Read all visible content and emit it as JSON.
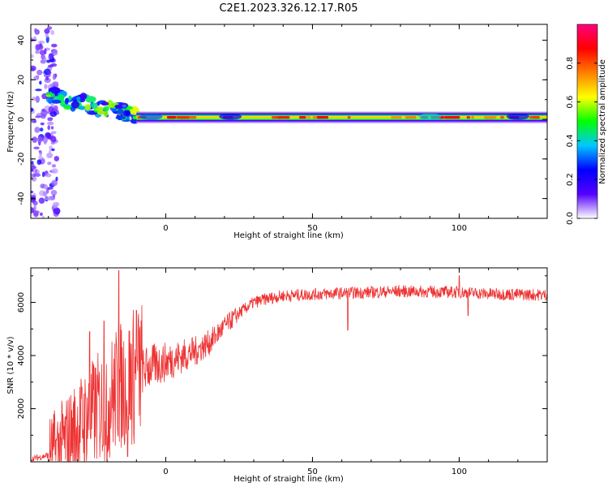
{
  "title": "C2E1.2023.326.12.17.R05",
  "chart_data": [
    {
      "type": "heatmap",
      "xlabel": "Height of straight line (km)",
      "ylabel": "Frequency (Hz)",
      "xlim": [
        -46,
        130
      ],
      "ylim": [
        -50,
        48
      ],
      "x_ticks": [
        0,
        50,
        100
      ],
      "y_ticks": [
        -40,
        -20,
        0,
        20,
        40
      ],
      "colorbar": {
        "label": "Normalized spectral amplitude",
        "range": [
          0,
          1
        ],
        "ticks": [
          0.0,
          0.2,
          0.4,
          0.6,
          0.8
        ],
        "tick_labels": [
          "0.0",
          "0.2",
          "0.4",
          "0.6",
          "0.8"
        ],
        "colors": [
          "#ffffff",
          "#5500ff",
          "#0000ff",
          "#00c8ff",
          "#00ff00",
          "#ffff00",
          "#ff7f00",
          "#ff0000",
          "#ff0080"
        ]
      },
      "features": [
        {
          "label": "noise-scatter",
          "x_range": [
            -46,
            -37
          ],
          "frequency_range": [
            -50,
            48
          ],
          "amplitude": 0.1
        },
        {
          "label": "drifting-signal",
          "x_range": [
            -40,
            -10
          ],
          "frequency_range": [
            -5,
            12
          ],
          "amplitude": 0.5
        },
        {
          "label": "carrier-line",
          "x_range": [
            -10,
            130
          ],
          "frequency": 1,
          "amplitude": 0.85
        }
      ]
    },
    {
      "type": "line",
      "xlabel": "Height of straight line (km)",
      "ylabel": "SNR (10 * v/v)",
      "xlim": [
        -46,
        130
      ],
      "ylim": [
        0,
        7300
      ],
      "x_ticks": [
        0,
        50,
        100
      ],
      "y_ticks": [
        2000,
        4000,
        6000
      ],
      "color": "#ee3333",
      "envelope": [
        {
          "x": -46,
          "y": 100
        },
        {
          "x": -40,
          "y": 250
        },
        {
          "x": -35,
          "y": 700
        },
        {
          "x": -30,
          "y": 1300
        },
        {
          "x": -25,
          "y": 1800
        },
        {
          "x": -20,
          "y": 2300
        },
        {
          "x": -15,
          "y": 2900
        },
        {
          "x": -10,
          "y": 3300
        },
        {
          "x": -5,
          "y": 3600
        },
        {
          "x": 0,
          "y": 3750
        },
        {
          "x": 5,
          "y": 3950
        },
        {
          "x": 10,
          "y": 4150
        },
        {
          "x": 15,
          "y": 4500
        },
        {
          "x": 20,
          "y": 5100
        },
        {
          "x": 25,
          "y": 5600
        },
        {
          "x": 30,
          "y": 6000
        },
        {
          "x": 35,
          "y": 6150
        },
        {
          "x": 40,
          "y": 6250
        },
        {
          "x": 50,
          "y": 6300
        },
        {
          "x": 60,
          "y": 6350
        },
        {
          "x": 70,
          "y": 6380
        },
        {
          "x": 80,
          "y": 6420
        },
        {
          "x": 90,
          "y": 6400
        },
        {
          "x": 100,
          "y": 6380
        },
        {
          "x": 110,
          "y": 6320
        },
        {
          "x": 120,
          "y": 6300
        },
        {
          "x": 130,
          "y": 6280
        }
      ],
      "spikes": [
        {
          "x": -16,
          "y": 7200
        },
        {
          "x": -13,
          "y": 6700
        },
        {
          "x": -26,
          "y": 4900
        },
        {
          "x": -21,
          "y": 5300
        },
        {
          "x": -10,
          "y": 5700
        },
        {
          "x": 62,
          "y": 4950
        },
        {
          "x": 100,
          "y": 7000
        },
        {
          "x": 103,
          "y": 5500
        },
        {
          "x": -20,
          "y": 100
        },
        {
          "x": -13,
          "y": 200
        }
      ]
    }
  ]
}
